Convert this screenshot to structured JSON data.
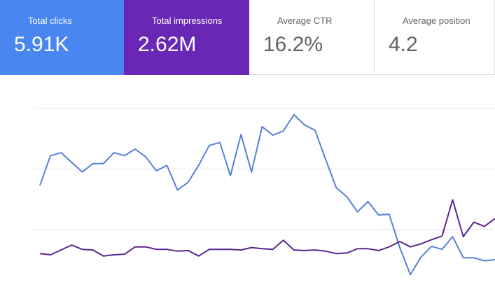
{
  "metrics": [
    {
      "label": "Total clicks",
      "value": "5.91K",
      "checked": true,
      "color": "#4a86f0"
    },
    {
      "label": "Total impressions",
      "value": "2.62M",
      "checked": true,
      "color": "#6a27b5"
    },
    {
      "label": "Average CTR",
      "value": "16.2%",
      "checked": false,
      "color": "#ffffff"
    },
    {
      "label": "Average position",
      "value": "4.2",
      "checked": false,
      "color": "#ffffff"
    }
  ],
  "chart_data": {
    "type": "line",
    "ylim": [
      0,
      3.5
    ],
    "yticks": [
      1,
      2,
      3
    ],
    "grid": true,
    "series": [
      {
        "name": "Total clicks",
        "color": "#5680d6",
        "values": [
          1.73,
          2.22,
          2.27,
          2.11,
          1.95,
          2.09,
          2.09,
          2.27,
          2.22,
          2.33,
          2.2,
          1.97,
          2.06,
          1.65,
          1.78,
          2.06,
          2.39,
          2.44,
          1.89,
          2.57,
          1.95,
          2.7,
          2.56,
          2.63,
          2.9,
          2.73,
          2.64,
          2.16,
          1.69,
          1.54,
          1.29,
          1.46,
          1.24,
          1.25,
          0.7,
          0.25,
          0.54,
          0.72,
          0.67,
          0.88,
          0.53,
          0.53,
          0.48,
          0.5
        ]
      },
      {
        "name": "Total impressions",
        "color": "#5b2590",
        "values": [
          0.6,
          0.58,
          0.66,
          0.74,
          0.67,
          0.66,
          0.56,
          0.58,
          0.59,
          0.71,
          0.71,
          0.67,
          0.67,
          0.64,
          0.65,
          0.56,
          0.67,
          0.67,
          0.67,
          0.66,
          0.7,
          0.68,
          0.67,
          0.82,
          0.66,
          0.65,
          0.66,
          0.64,
          0.6,
          0.61,
          0.68,
          0.68,
          0.65,
          0.71,
          0.8,
          0.71,
          0.76,
          0.83,
          0.89,
          1.49,
          0.88,
          1.12,
          1.05,
          1.18
        ]
      }
    ]
  }
}
